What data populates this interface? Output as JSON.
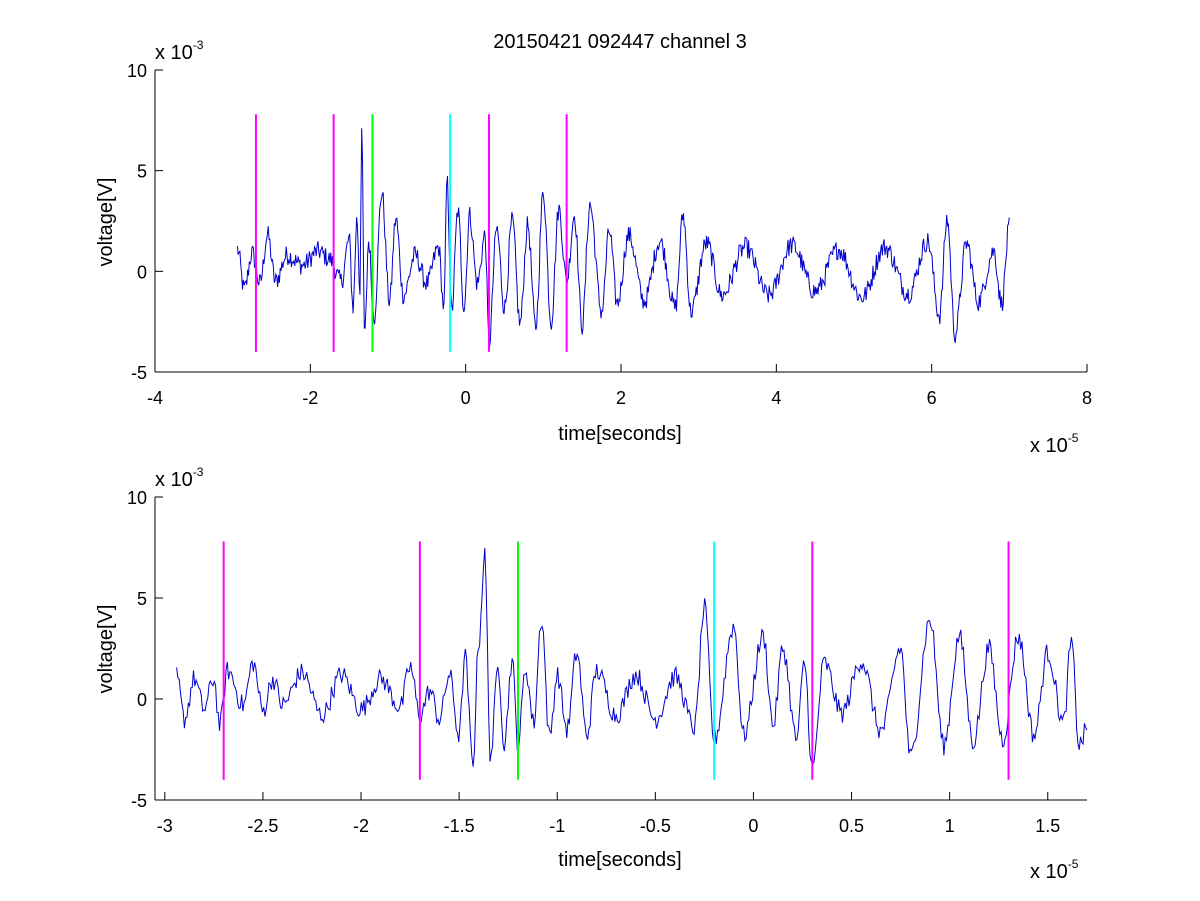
{
  "chart_data": [
    {
      "type": "line",
      "title": "20150421 092447 channel 3",
      "xlabel": "time[seconds]",
      "ylabel": "voltage[V]",
      "x_multiplier_label": "x 10",
      "x_multiplier_exp": "-5",
      "y_multiplier_label": "x 10",
      "y_multiplier_exp": "-3",
      "xlim": [
        -4,
        8
      ],
      "ylim": [
        -5,
        10
      ],
      "xticks": [
        -4,
        -2,
        0,
        2,
        4,
        6,
        8
      ],
      "xtick_labels": [
        "-4",
        "-2",
        "0",
        "2",
        "4",
        "6",
        "8"
      ],
      "yticks": [
        -5,
        0,
        5,
        10
      ],
      "ytick_labels": [
        "-5",
        "0",
        "5",
        "10"
      ],
      "grid": false,
      "series": [
        {
          "color": "#0000cc",
          "x_range": [
            -2.94,
            7.0
          ],
          "points": [
            [
              -2.94,
              1.1
            ],
            [
              -2.85,
              -0.9
            ],
            [
              -2.75,
              0.9
            ],
            [
              -2.65,
              -0.6
            ],
            [
              -2.55,
              1.8
            ],
            [
              -2.45,
              -0.5
            ],
            [
              -2.3,
              0.8
            ],
            [
              -2.1,
              0.3
            ],
            [
              -1.9,
              1.0
            ],
            [
              -1.75,
              0.6
            ],
            [
              -1.6,
              -0.5
            ],
            [
              -1.5,
              1.6
            ],
            [
              -1.45,
              -1.8
            ],
            [
              -1.4,
              2.6
            ],
            [
              -1.36,
              -1.0
            ],
            [
              -1.34,
              7.1
            ],
            [
              -1.3,
              -3.3
            ],
            [
              -1.25,
              1.5
            ],
            [
              -1.18,
              -2.3
            ],
            [
              -1.08,
              3.9
            ],
            [
              -0.98,
              -1.5
            ],
            [
              -0.9,
              2.6
            ],
            [
              -0.8,
              -1.2
            ],
            [
              -0.65,
              0.8
            ],
            [
              -0.5,
              -0.6
            ],
            [
              -0.35,
              1.2
            ],
            [
              -0.28,
              -1.8
            ],
            [
              -0.24,
              4.5
            ],
            [
              -0.18,
              -2.0
            ],
            [
              -0.1,
              3.0
            ],
            [
              -0.02,
              -1.8
            ],
            [
              0.05,
              2.8
            ],
            [
              0.15,
              -0.6
            ],
            [
              0.25,
              1.8
            ],
            [
              0.3,
              -3.6
            ],
            [
              0.4,
              2.1
            ],
            [
              0.5,
              -1.8
            ],
            [
              0.6,
              2.5
            ],
            [
              0.7,
              -2.6
            ],
            [
              0.8,
              2.3
            ],
            [
              0.9,
              -2.8
            ],
            [
              1.0,
              3.9
            ],
            [
              1.1,
              -2.5
            ],
            [
              1.2,
              3.1
            ],
            [
              1.3,
              -0.5
            ],
            [
              1.4,
              2.8
            ],
            [
              1.5,
              -2.7
            ],
            [
              1.6,
              3.3
            ],
            [
              1.75,
              -2.0
            ],
            [
              1.85,
              2.0
            ],
            [
              1.95,
              -1.6
            ],
            [
              2.1,
              1.8
            ],
            [
              2.3,
              -1.5
            ],
            [
              2.5,
              1.5
            ],
            [
              2.7,
              -1.8
            ],
            [
              2.8,
              2.8
            ],
            [
              2.9,
              -2.0
            ],
            [
              3.1,
              1.4
            ],
            [
              3.3,
              -1.2
            ],
            [
              3.6,
              1.2
            ],
            [
              3.9,
              -1.2
            ],
            [
              4.2,
              1.3
            ],
            [
              4.5,
              -1.0
            ],
            [
              4.8,
              1.1
            ],
            [
              5.1,
              -1.3
            ],
            [
              5.4,
              1.2
            ],
            [
              5.7,
              -1.1
            ],
            [
              5.95,
              1.5
            ],
            [
              6.1,
              -2.2
            ],
            [
              6.2,
              2.6
            ],
            [
              6.3,
              -3.1
            ],
            [
              6.45,
              1.4
            ],
            [
              6.6,
              -1.5
            ],
            [
              6.8,
              1.0
            ],
            [
              6.9,
              -1.6
            ],
            [
              7.0,
              2.2
            ]
          ]
        }
      ],
      "markers": [
        {
          "x": -2.7,
          "color": "#ff00ff"
        },
        {
          "x": -1.7,
          "color": "#ff00ff"
        },
        {
          "x": -1.2,
          "color": "#00ff00"
        },
        {
          "x": -0.2,
          "color": "#00ffff"
        },
        {
          "x": 0.3,
          "color": "#ff00ff"
        },
        {
          "x": 1.3,
          "color": "#ff00ff"
        }
      ],
      "marker_range": [
        -4,
        7.8
      ]
    },
    {
      "type": "line",
      "title": "",
      "xlabel": "time[seconds]",
      "ylabel": "voltage[V]",
      "x_multiplier_label": "x 10",
      "x_multiplier_exp": "-5",
      "y_multiplier_label": "x 10",
      "y_multiplier_exp": "-3",
      "xlim": [
        -3.05,
        1.7
      ],
      "ylim": [
        -5,
        10
      ],
      "xticks": [
        -3,
        -2.5,
        -2,
        -1.5,
        -1,
        -0.5,
        0,
        0.5,
        1,
        1.5
      ],
      "xtick_labels": [
        "-3",
        "-2.5",
        "-2",
        "-1.5",
        "-1",
        "-0.5",
        "0",
        "0.5",
        "1",
        "1.5"
      ],
      "yticks": [
        -5,
        0,
        5,
        10
      ],
      "ytick_labels": [
        "-5",
        "0",
        "5",
        "10"
      ],
      "grid": false,
      "series": [
        {
          "color": "#0000cc",
          "x_range": [
            -2.94,
            1.7
          ],
          "points": [
            [
              -2.94,
              1.1
            ],
            [
              -2.9,
              -1.0
            ],
            [
              -2.85,
              1.0
            ],
            [
              -2.8,
              -0.5
            ],
            [
              -2.75,
              1.0
            ],
            [
              -2.72,
              -1.3
            ],
            [
              -2.68,
              1.4
            ],
            [
              -2.6,
              -0.3
            ],
            [
              -2.55,
              1.8
            ],
            [
              -2.5,
              -0.6
            ],
            [
              -2.45,
              1.0
            ],
            [
              -2.4,
              -0.3
            ],
            [
              -2.3,
              1.3
            ],
            [
              -2.2,
              -0.8
            ],
            [
              -2.1,
              1.2
            ],
            [
              -2.0,
              -0.5
            ],
            [
              -1.9,
              1.0
            ],
            [
              -1.8,
              -0.4
            ],
            [
              -1.75,
              1.6
            ],
            [
              -1.7,
              -0.8
            ],
            [
              -1.65,
              0.4
            ],
            [
              -1.6,
              -1.0
            ],
            [
              -1.55,
              1.2
            ],
            [
              -1.5,
              -1.8
            ],
            [
              -1.47,
              2.1
            ],
            [
              -1.43,
              -3.2
            ],
            [
              -1.4,
              2.8
            ],
            [
              -1.37,
              7.1
            ],
            [
              -1.34,
              -2.8
            ],
            [
              -1.3,
              1.6
            ],
            [
              -1.27,
              -2.2
            ],
            [
              -1.23,
              1.9
            ],
            [
              -1.2,
              -2.2
            ],
            [
              -1.16,
              1.5
            ],
            [
              -1.12,
              -1.2
            ],
            [
              -1.08,
              4.0
            ],
            [
              -1.04,
              -1.9
            ],
            [
              -1.0,
              1.2
            ],
            [
              -0.95,
              -1.5
            ],
            [
              -0.9,
              2.3
            ],
            [
              -0.85,
              -1.8
            ],
            [
              -0.8,
              1.4
            ],
            [
              -0.7,
              -0.8
            ],
            [
              -0.6,
              1.2
            ],
            [
              -0.5,
              -1.0
            ],
            [
              -0.4,
              1.1
            ],
            [
              -0.3,
              -1.4
            ],
            [
              -0.25,
              4.5
            ],
            [
              -0.2,
              -2.0
            ],
            [
              -0.1,
              3.6
            ],
            [
              -0.05,
              -1.8
            ],
            [
              0.05,
              3.1
            ],
            [
              0.1,
              -1.3
            ],
            [
              0.15,
              2.5
            ],
            [
              0.22,
              -2.0
            ],
            [
              0.26,
              1.8
            ],
            [
              0.3,
              -3.5
            ],
            [
              0.36,
              1.8
            ],
            [
              0.45,
              -0.7
            ],
            [
              0.55,
              1.9
            ],
            [
              0.65,
              -1.6
            ],
            [
              0.75,
              2.5
            ],
            [
              0.8,
              -2.9
            ],
            [
              0.9,
              3.9
            ],
            [
              0.97,
              -2.3
            ],
            [
              1.05,
              3.1
            ],
            [
              1.12,
              -2.1
            ],
            [
              1.2,
              2.5
            ],
            [
              1.27,
              -2.0
            ],
            [
              1.35,
              3.1
            ],
            [
              1.43,
              -1.8
            ],
            [
              1.5,
              2.3
            ],
            [
              1.58,
              -1.2
            ],
            [
              1.62,
              2.8
            ],
            [
              1.66,
              -2.3
            ],
            [
              1.7,
              -1.5
            ]
          ]
        }
      ],
      "markers": [
        {
          "x": -2.7,
          "color": "#ff00ff"
        },
        {
          "x": -1.7,
          "color": "#ff00ff"
        },
        {
          "x": -1.2,
          "color": "#00ff00"
        },
        {
          "x": -0.2,
          "color": "#00ffff"
        },
        {
          "x": 0.3,
          "color": "#ff00ff"
        },
        {
          "x": 1.3,
          "color": "#ff00ff"
        }
      ],
      "marker_range": [
        -4,
        7.8
      ]
    }
  ]
}
